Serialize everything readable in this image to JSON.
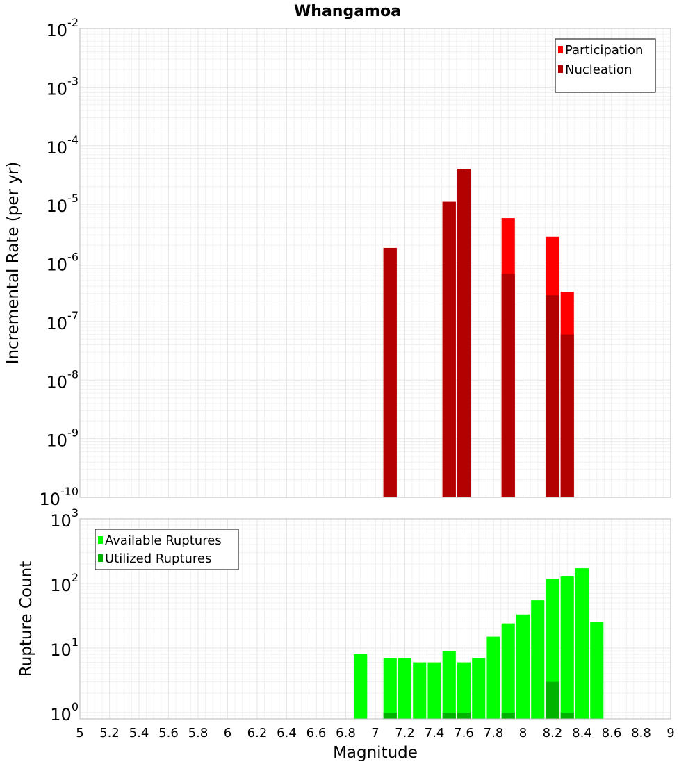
{
  "title": "Whangamoa",
  "colors": {
    "participation": "#ff0000",
    "nucleation": "#b30000",
    "available": "#00ff00",
    "utilized": "#00b300"
  },
  "chart_data": [
    {
      "type": "bar",
      "scale": "log",
      "ylabel": "Incremental Rate (per yr)",
      "ylim": [
        1e-10,
        0.01
      ],
      "y_ticks": [
        {
          "base": "10",
          "exp": "-10"
        },
        {
          "base": "10",
          "exp": "-9"
        },
        {
          "base": "10",
          "exp": "-8"
        },
        {
          "base": "10",
          "exp": "-7"
        },
        {
          "base": "10",
          "exp": "-6"
        },
        {
          "base": "10",
          "exp": "-5"
        },
        {
          "base": "10",
          "exp": "-4"
        },
        {
          "base": "10",
          "exp": "-3"
        },
        {
          "base": "10",
          "exp": "-2"
        }
      ],
      "x": [
        7.1,
        7.5,
        7.6,
        7.9,
        8.2,
        8.3
      ],
      "series": [
        {
          "name": "Participation",
          "values": [
            1.8e-06,
            1.1e-05,
            4e-05,
            5.8e-06,
            2.8e-06,
            3.2e-07
          ]
        },
        {
          "name": "Nucleation",
          "values": [
            1.8e-06,
            1.1e-05,
            4e-05,
            6.5e-07,
            2.8e-07,
            6e-08
          ]
        }
      ],
      "legend": [
        "Participation",
        "Nucleation"
      ],
      "legend_position": "top-right"
    },
    {
      "type": "bar",
      "scale": "log",
      "ylabel": "Rupture Count",
      "ylim": [
        0.8,
        1000
      ],
      "y_ticks": [
        {
          "base": "10",
          "exp": "0"
        },
        {
          "base": "10",
          "exp": "1"
        },
        {
          "base": "10",
          "exp": "2"
        },
        {
          "base": "10",
          "exp": "3"
        }
      ],
      "x": [
        6.9,
        7.1,
        7.2,
        7.3,
        7.4,
        7.5,
        7.6,
        7.7,
        7.8,
        7.9,
        8.0,
        8.1,
        8.2,
        8.3,
        8.4,
        8.5
      ],
      "series": [
        {
          "name": "Available Ruptures",
          "values": [
            8,
            7,
            7,
            6,
            6,
            9,
            6,
            7,
            15,
            24,
            33,
            55,
            118,
            128,
            172,
            25
          ]
        },
        {
          "name": "Utilized Ruptures",
          "values": [
            0,
            1,
            0,
            0,
            0,
            1,
            1,
            0,
            0,
            1,
            0,
            0,
            3,
            1,
            0,
            0
          ]
        }
      ],
      "legend": [
        "Available Ruptures",
        "Utilized Ruptures"
      ],
      "legend_position": "top-left"
    }
  ],
  "x_axis": {
    "label": "Magnitude",
    "xlim": [
      5,
      9
    ],
    "ticks": [
      "5",
      "5.2",
      "5.4",
      "5.6",
      "5.8",
      "6",
      "6.2",
      "6.4",
      "6.6",
      "6.8",
      "7",
      "7.2",
      "7.4",
      "7.6",
      "7.8",
      "8",
      "8.2",
      "8.4",
      "8.6",
      "8.8",
      "9"
    ]
  }
}
